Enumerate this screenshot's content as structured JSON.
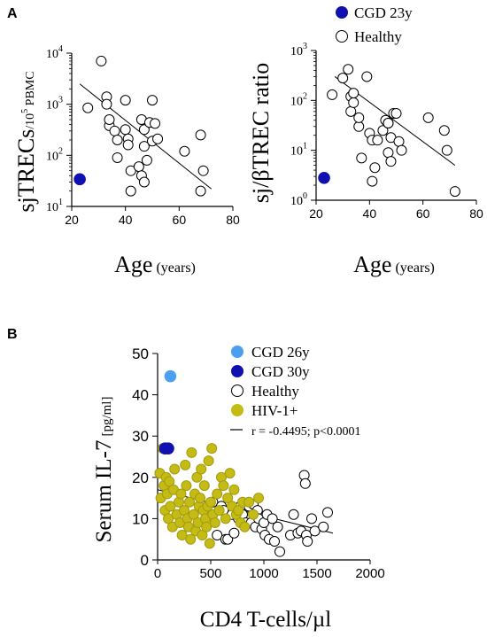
{
  "panel_labels": {
    "a": "A",
    "b": "B"
  },
  "chart_data": [
    {
      "id": "A-left",
      "type": "scatter",
      "y_scale": "log",
      "xlim": [
        20,
        80
      ],
      "ylim": [
        10,
        10000
      ],
      "x_ticks": [
        "20",
        "40",
        "60",
        "80"
      ],
      "y_tick_labels": [
        {
          "base": "10",
          "exp": "1",
          "value": 10
        },
        {
          "base": "10",
          "exp": "2",
          "value": 100
        },
        {
          "base": "10",
          "exp": "3",
          "value": 1000
        },
        {
          "base": "10",
          "exp": "4",
          "value": 10000
        }
      ],
      "xlabel_main": "Age",
      "xlabel_unit": "(years)",
      "ylabel_main": "sjTRECs",
      "ylabel_unit_pre": "/10",
      "ylabel_unit_exp": "5",
      "ylabel_unit_post": " PBMC",
      "series": [
        {
          "name": "CGD 23y",
          "color": "#1010b0",
          "filled": true,
          "points": [
            [
              23,
              34
            ]
          ]
        },
        {
          "name": "Healthy",
          "color": "#000000",
          "filled": false,
          "points": [
            [
              26,
              850
            ],
            [
              31,
              7000
            ],
            [
              33,
              1400
            ],
            [
              33,
              1000
            ],
            [
              34,
              380
            ],
            [
              34,
              500
            ],
            [
              36,
              300
            ],
            [
              37,
              200
            ],
            [
              37,
              90
            ],
            [
              40,
              1200
            ],
            [
              40,
              320
            ],
            [
              41,
              210
            ],
            [
              41,
              160
            ],
            [
              42,
              20
            ],
            [
              42,
              50
            ],
            [
              45,
              60
            ],
            [
              46,
              40
            ],
            [
              46,
              500
            ],
            [
              47,
              320
            ],
            [
              47,
              150
            ],
            [
              47,
              30
            ],
            [
              48,
              80
            ],
            [
              49,
              440
            ],
            [
              50,
              1200
            ],
            [
              50,
              190
            ],
            [
              51,
              420
            ],
            [
              52,
              210
            ],
            [
              62,
              120
            ],
            [
              68,
              250
            ],
            [
              69,
              50
            ],
            [
              68,
              20
            ]
          ]
        }
      ],
      "trendline": {
        "x": [
          23,
          72
        ],
        "y": [
          2500,
          22
        ]
      }
    },
    {
      "id": "A-right",
      "type": "scatter",
      "y_scale": "log",
      "xlim": [
        20,
        80
      ],
      "ylim": [
        1,
        1000
      ],
      "x_ticks": [
        "20",
        "40",
        "60",
        "80"
      ],
      "y_tick_labels": [
        {
          "base": "10",
          "exp": "0",
          "value": 1
        },
        {
          "base": "10",
          "exp": "1",
          "value": 10
        },
        {
          "base": "10",
          "exp": "2",
          "value": 100
        },
        {
          "base": "10",
          "exp": "3",
          "value": 1000
        }
      ],
      "xlabel_main": "Age",
      "xlabel_unit": "(years)",
      "ylabel_main": "sj/βTREC ratio",
      "legend": [
        {
          "label": "CGD 23y",
          "color": "#1010b0",
          "filled": true
        },
        {
          "label": "Healthy",
          "color": "#000000",
          "filled": false
        }
      ],
      "series": [
        {
          "name": "CGD 23y",
          "color": "#1010b0",
          "filled": true,
          "points": [
            [
              23,
              2.8
            ]
          ]
        },
        {
          "name": "Healthy",
          "color": "#000000",
          "filled": false,
          "points": [
            [
              26,
              130
            ],
            [
              30,
              280
            ],
            [
              32,
              420
            ],
            [
              33,
              120
            ],
            [
              33,
              60
            ],
            [
              34,
              90
            ],
            [
              34,
              140
            ],
            [
              36,
              30
            ],
            [
              36,
              45
            ],
            [
              37,
              7
            ],
            [
              39,
              300
            ],
            [
              40,
              22
            ],
            [
              41,
              16
            ],
            [
              41,
              2.4
            ],
            [
              42,
              4.5
            ],
            [
              43,
              16
            ],
            [
              45,
              25
            ],
            [
              46,
              40
            ],
            [
              47,
              35
            ],
            [
              47,
              35
            ],
            [
              47,
              9
            ],
            [
              48,
              6
            ],
            [
              48,
              18
            ],
            [
              49,
              55
            ],
            [
              50,
              55
            ],
            [
              51,
              15
            ],
            [
              52,
              10
            ],
            [
              62,
              45
            ],
            [
              68,
              25
            ],
            [
              69,
              10
            ],
            [
              72,
              1.5
            ]
          ]
        }
      ],
      "trendline": {
        "x": [
          27,
          72
        ],
        "y": [
          300,
          5
        ]
      }
    },
    {
      "id": "B",
      "type": "scatter",
      "xlim": [
        0,
        2000
      ],
      "ylim": [
        0,
        50
      ],
      "x_ticks": [
        "0",
        "500",
        "1000",
        "1500",
        "2000"
      ],
      "y_ticks": [
        "0",
        "10",
        "20",
        "30",
        "40",
        "50"
      ],
      "xlabel": "CD4 T-cells/µl",
      "ylabel_main": "Serum IL-7",
      "ylabel_unit": "[pg/ml]",
      "legend": [
        {
          "label": "CGD 26y",
          "color": "#4aa0ee",
          "kind": "filled"
        },
        {
          "label": "CGD 30y",
          "color": "#1010b0",
          "kind": "filled"
        },
        {
          "label": "Healthy",
          "color": "#000000",
          "kind": "open"
        },
        {
          "label": "HIV-1+",
          "color": "#c4bb14",
          "kind": "filled"
        },
        {
          "label": "r = -0.4495; p<0.0001",
          "color": "#000000",
          "kind": "line"
        }
      ],
      "series": [
        {
          "name": "CGD 26y",
          "color": "#4aa0ee",
          "filled": true,
          "points": [
            [
              120,
              44.5
            ]
          ]
        },
        {
          "name": "CGD 30y",
          "color": "#1010b0",
          "filled": true,
          "points": [
            [
              70,
              27
            ],
            [
              100,
              27
            ]
          ]
        },
        {
          "name": "Healthy",
          "color": "#000000",
          "filled": false,
          "points": [
            [
              520,
              14
            ],
            [
              560,
              6
            ],
            [
              600,
              13
            ],
            [
              620,
              12
            ],
            [
              640,
              5
            ],
            [
              660,
              5
            ],
            [
              700,
              11
            ],
            [
              720,
              6.5
            ],
            [
              760,
              10
            ],
            [
              780,
              13
            ],
            [
              800,
              11
            ],
            [
              830,
              9
            ],
            [
              860,
              13
            ],
            [
              880,
              9
            ],
            [
              900,
              13.5
            ],
            [
              920,
              8
            ],
            [
              940,
              12
            ],
            [
              950,
              10
            ],
            [
              980,
              7.5
            ],
            [
              1000,
              9
            ],
            [
              1010,
              6
            ],
            [
              1030,
              11
            ],
            [
              1050,
              5
            ],
            [
              1080,
              10
            ],
            [
              1100,
              4.5
            ],
            [
              1130,
              8
            ],
            [
              1150,
              2
            ],
            [
              1250,
              6
            ],
            [
              1280,
              11
            ],
            [
              1320,
              6.5
            ],
            [
              1350,
              7
            ],
            [
              1380,
              20.5
            ],
            [
              1390,
              18.5
            ],
            [
              1400,
              6
            ],
            [
              1410,
              4.5
            ],
            [
              1450,
              10
            ],
            [
              1480,
              7
            ],
            [
              1560,
              8
            ],
            [
              1600,
              11.5
            ]
          ]
        },
        {
          "name": "HIV-1+",
          "color": "#c4bb14",
          "filled": true,
          "points": [
            [
              20,
              21
            ],
            [
              30,
              15
            ],
            [
              50,
              27
            ],
            [
              60,
              18
            ],
            [
              70,
              12
            ],
            [
              80,
              20
            ],
            [
              90,
              16
            ],
            [
              100,
              10
            ],
            [
              110,
              19
            ],
            [
              120,
              13
            ],
            [
              140,
              8
            ],
            [
              150,
              17
            ],
            [
              160,
              22
            ],
            [
              180,
              11
            ],
            [
              200,
              14
            ],
            [
              210,
              9
            ],
            [
              220,
              16
            ],
            [
              230,
              6
            ],
            [
              250,
              12
            ],
            [
              260,
              23
            ],
            [
              270,
              18
            ],
            [
              280,
              10
            ],
            [
              290,
              8
            ],
            [
              300,
              14
            ],
            [
              310,
              5
            ],
            [
              320,
              26
            ],
            [
              340,
              11
            ],
            [
              350,
              16
            ],
            [
              360,
              7
            ],
            [
              370,
              20
            ],
            [
              380,
              9
            ],
            [
              390,
              13
            ],
            [
              400,
              15
            ],
            [
              410,
              22
            ],
            [
              420,
              6
            ],
            [
              430,
              12
            ],
            [
              440,
              18
            ],
            [
              450,
              10
            ],
            [
              460,
              8
            ],
            [
              470,
              13
            ],
            [
              480,
              24
            ],
            [
              490,
              4
            ],
            [
              500,
              14
            ],
            [
              510,
              27
            ],
            [
              520,
              11
            ],
            [
              540,
              9
            ],
            [
              560,
              16
            ],
            [
              580,
              12
            ],
            [
              600,
              20
            ],
            [
              620,
              18
            ],
            [
              640,
              10
            ],
            [
              660,
              15
            ],
            [
              680,
              21
            ],
            [
              700,
              13
            ],
            [
              720,
              17
            ],
            [
              740,
              11
            ],
            [
              760,
              12
            ],
            [
              780,
              9
            ],
            [
              800,
              14
            ],
            [
              820,
              8
            ],
            [
              860,
              14
            ],
            [
              900,
              11
            ],
            [
              950,
              15
            ]
          ]
        }
      ],
      "trendline": {
        "x": [
          0,
          1650
        ],
        "y": [
          17,
          6.5
        ]
      }
    }
  ]
}
